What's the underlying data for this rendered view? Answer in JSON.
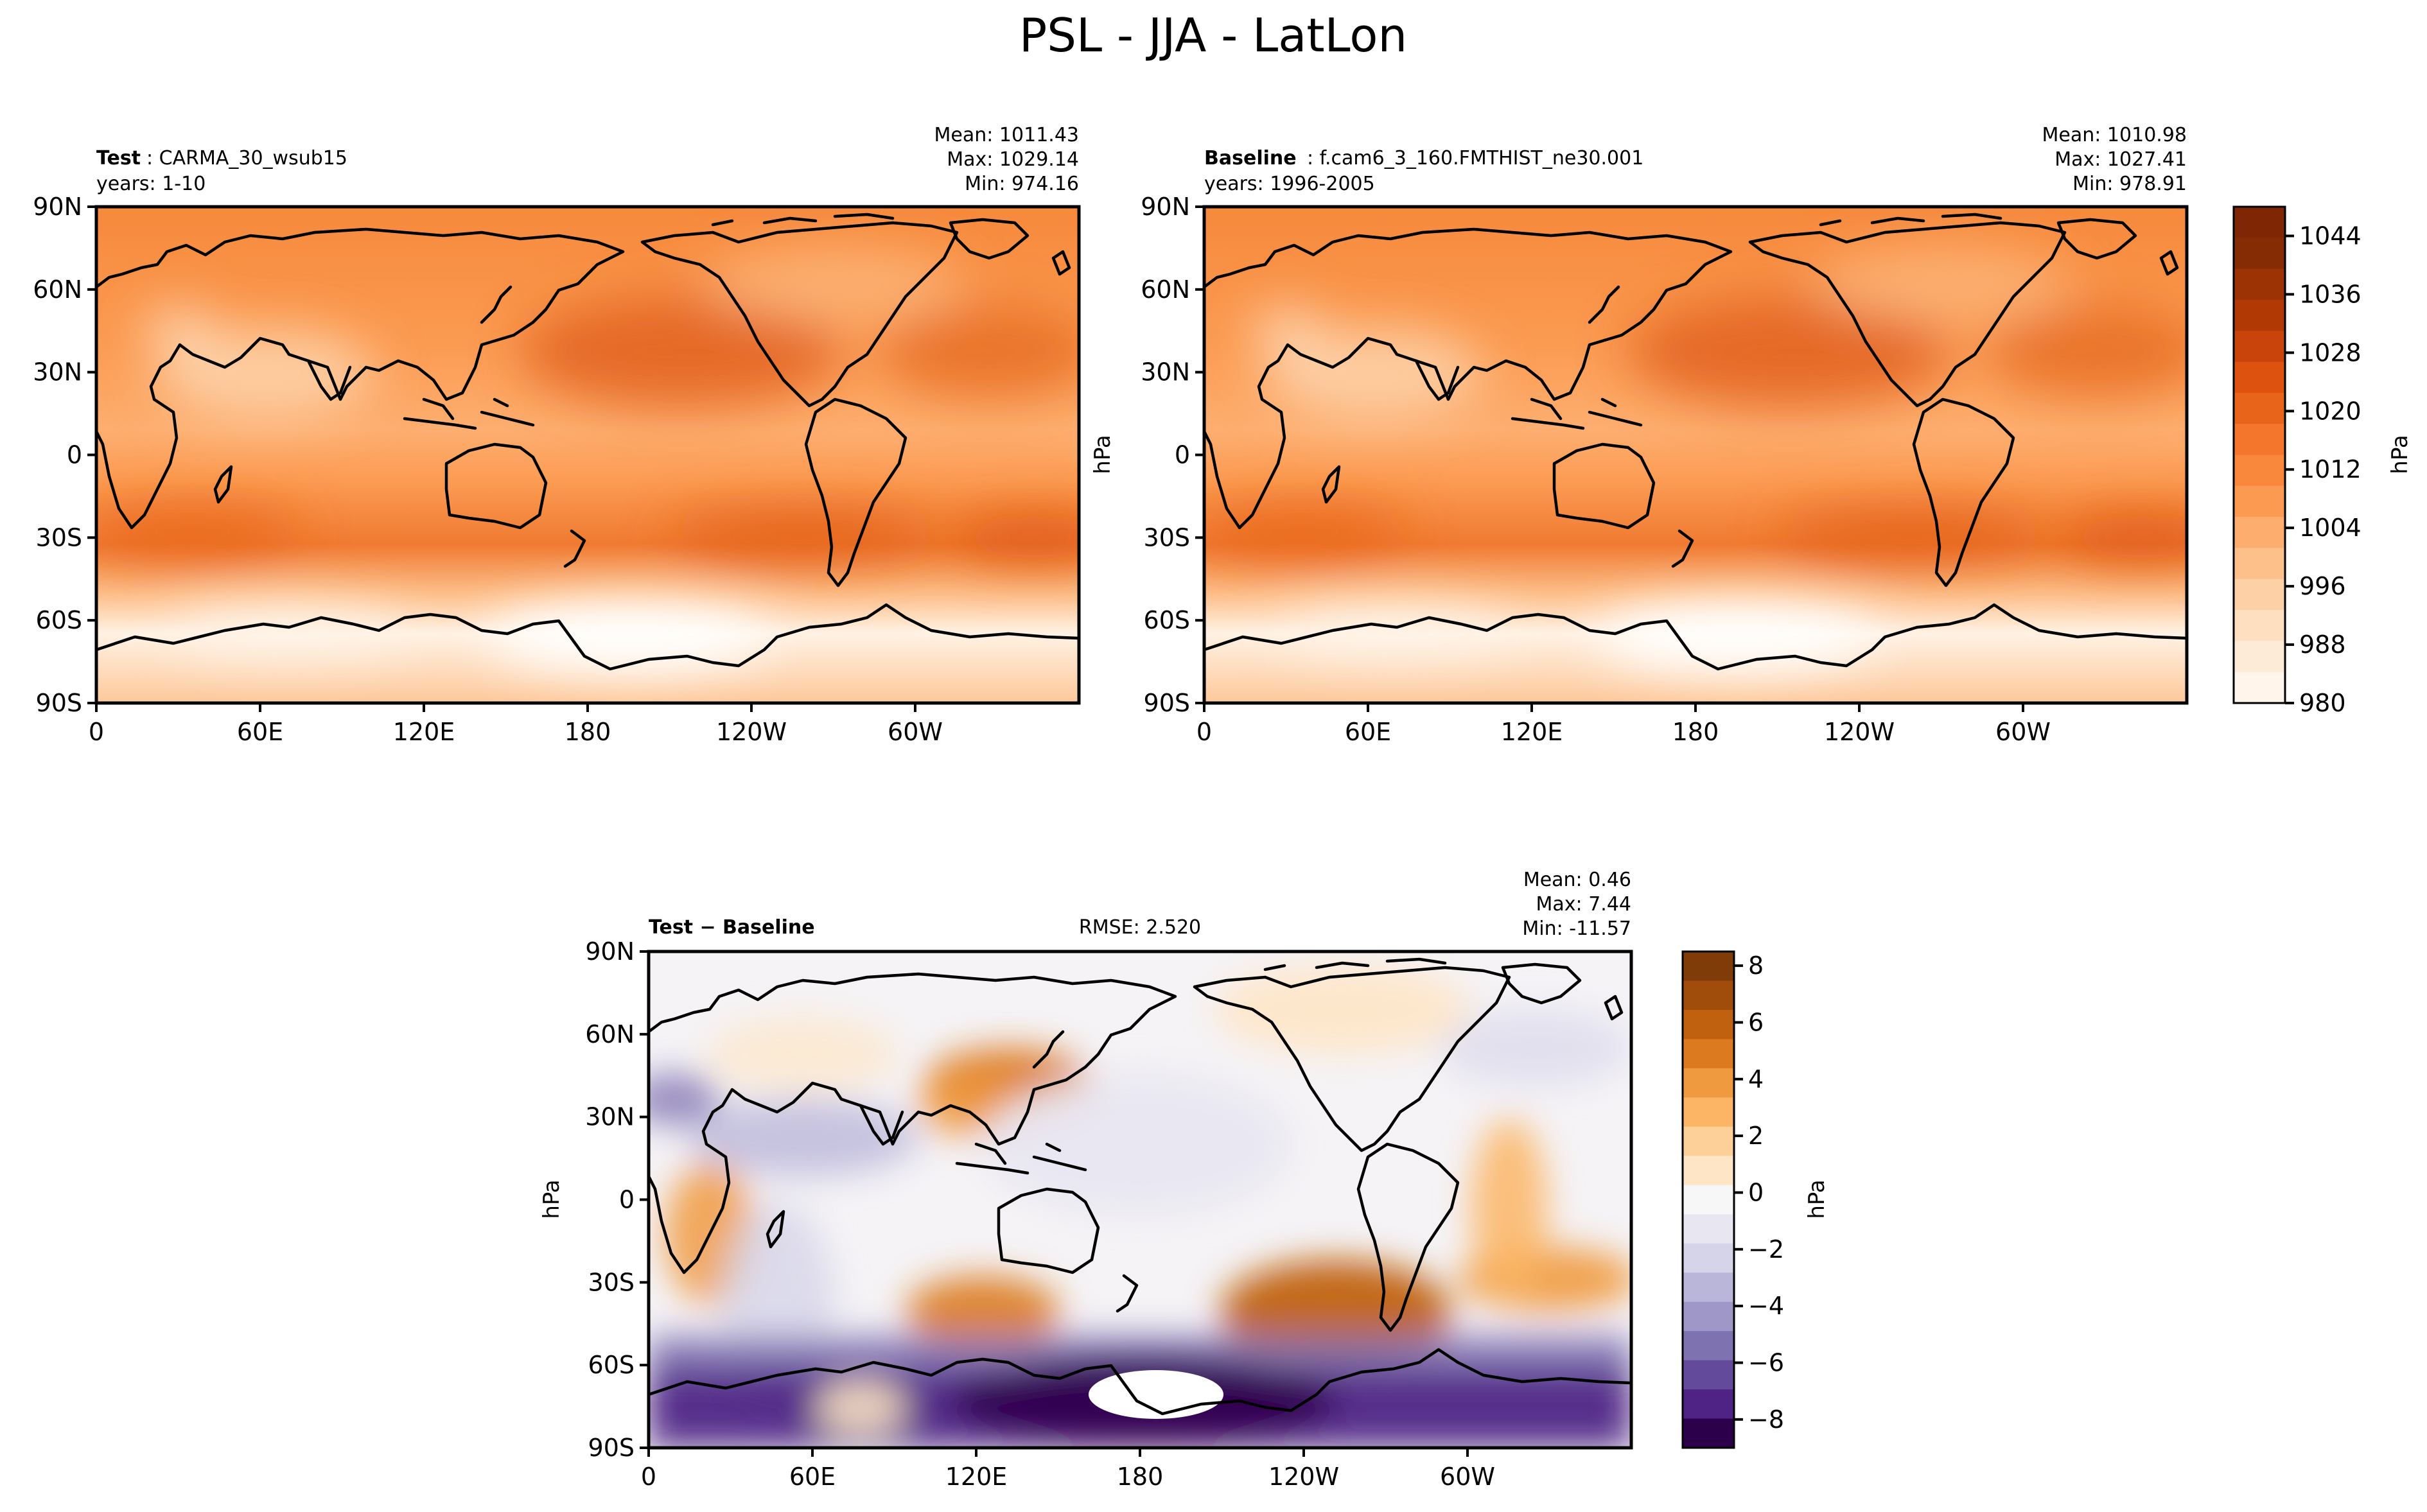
{
  "figure": {
    "title": "PSL - JJA - LatLon"
  },
  "chart_data": [
    {
      "type": "heatmap",
      "panel": "test",
      "label_bold": "Test",
      "label_text": ": CARMA_30_wsub15",
      "years": "years: 1-10",
      "stats": [
        "Mean: 1011.43",
        "Max: 1029.14",
        "Min: 974.16"
      ],
      "mean": 1011.43,
      "max": 1029.14,
      "min": 974.16,
      "x_ticks": [
        "0",
        "60E",
        "120E",
        "180",
        "120W",
        "60W"
      ],
      "y_ticks": [
        "90N",
        "60N",
        "30N",
        "0",
        "30S",
        "60S",
        "90S"
      ],
      "xlim": [
        0,
        360
      ],
      "ylim": [
        -90,
        90
      ],
      "colormap": "Oranges",
      "units": "hPa"
    },
    {
      "type": "heatmap",
      "panel": "baseline",
      "label_bold": "Baseline",
      "label_text": ": f.cam6_3_160.FMTHIST_ne30.001",
      "years": "years: 1996-2005",
      "stats": [
        "Mean: 1010.98",
        "Max: 1027.41",
        "Min: 978.91"
      ],
      "mean": 1010.98,
      "max": 1027.41,
      "min": 978.91,
      "x_ticks": [
        "0",
        "60E",
        "120E",
        "180",
        "120W",
        "60W"
      ],
      "y_ticks": [
        "90N",
        "60N",
        "30N",
        "0",
        "30S",
        "60S",
        "90S"
      ],
      "xlim": [
        0,
        360
      ],
      "ylim": [
        -90,
        90
      ],
      "ylabel": "hPa",
      "colormap": "Oranges",
      "units": "hPa"
    },
    {
      "type": "heatmap",
      "panel": "difference",
      "label_bold": "Test − Baseline",
      "rmse": "RMSE: 2.520",
      "stats": [
        "Mean:  0.46",
        "Max:  7.44",
        "Min: -11.57"
      ],
      "mean": 0.46,
      "max": 7.44,
      "min": -11.57,
      "x_ticks": [
        "0",
        "60E",
        "120E",
        "180",
        "120W",
        "60W"
      ],
      "y_ticks": [
        "90N",
        "60N",
        "30N",
        "0",
        "30S",
        "60S",
        "90S"
      ],
      "xlim": [
        0,
        360
      ],
      "ylim": [
        -90,
        90
      ],
      "ylabel": "hPa",
      "colormap": "PuOr_r",
      "units": "hPa"
    }
  ],
  "colorbars": {
    "main": {
      "ticks": [
        "980",
        "988",
        "996",
        "1004",
        "1012",
        "1020",
        "1028",
        "1036",
        "1044"
      ],
      "range": [
        980,
        1048
      ],
      "colors": [
        "#fff5eb",
        "#feebd7",
        "#fee0c1",
        "#fdd1a5",
        "#fdc08a",
        "#fdad6e",
        "#fd9a52",
        "#f9883d",
        "#f3762c",
        "#e8641b",
        "#dc520e",
        "#c8440b",
        "#b13a04",
        "#9b3304",
        "#862c04",
        "#7f2704"
      ],
      "label": "hPa"
    },
    "diff": {
      "ticks": [
        "8",
        "6",
        "4",
        "2",
        "0",
        "−2",
        "−4",
        "−6",
        "−8"
      ],
      "range": [
        -9,
        8.5
      ],
      "colors": [
        "#7f3b08",
        "#a04c0a",
        "#c0610f",
        "#dc7a1f",
        "#f09a3f",
        "#fbb564",
        "#fdd09a",
        "#fee5c6",
        "#f7f7f7",
        "#e8e6f1",
        "#d6d4e9",
        "#bab6d9",
        "#9e97c8",
        "#7f72b1",
        "#634a9b",
        "#4e2385",
        "#2d004b"
      ],
      "label": "hPa"
    }
  }
}
